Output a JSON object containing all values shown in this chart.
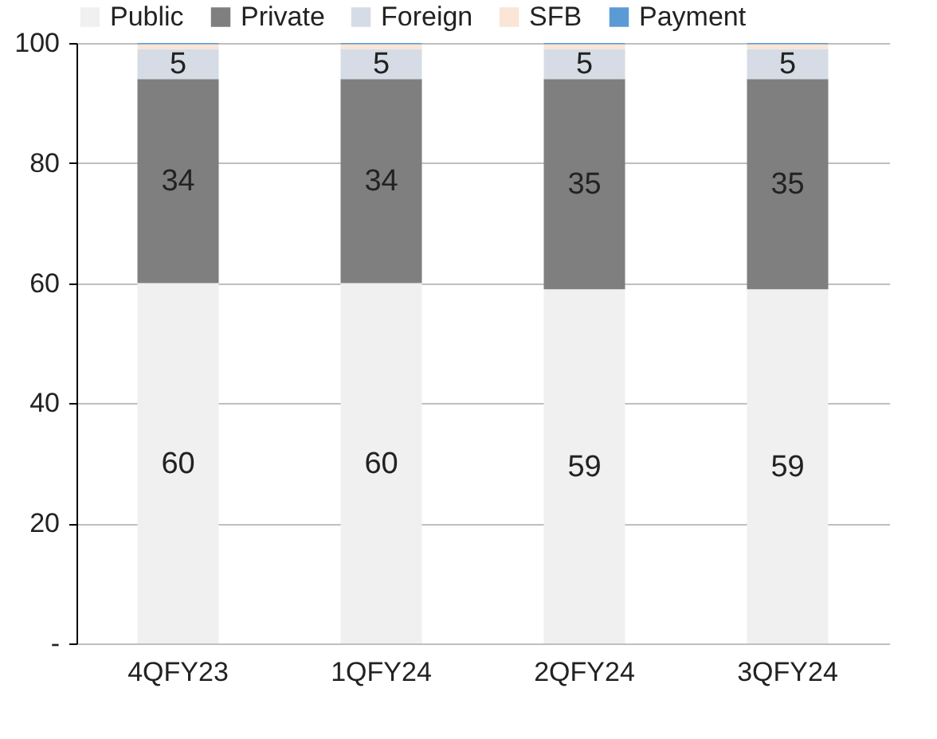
{
  "chart_data": {
    "type": "bar",
    "stacked": true,
    "categories": [
      "4QFY23",
      "1QFY24",
      "2QFY24",
      "3QFY24"
    ],
    "series": [
      {
        "name": "Public",
        "color": "#f0f0f0",
        "values": [
          60,
          60,
          59,
          59
        ],
        "value_labels": [
          "60",
          "60",
          "59",
          "59"
        ]
      },
      {
        "name": "Private",
        "color": "#7f7f7f",
        "values": [
          34,
          34,
          35,
          35
        ],
        "value_labels": [
          "34",
          "34",
          "35",
          "35"
        ]
      },
      {
        "name": "Foreign",
        "color": "#d6dce5",
        "values": [
          5,
          5,
          5,
          5
        ],
        "value_labels": [
          "5",
          "5",
          "5",
          "5"
        ]
      },
      {
        "name": "SFB",
        "color": "#fbe5d6",
        "values": [
          0.8,
          0.8,
          0.8,
          0.8
        ],
        "value_labels": [
          null,
          null,
          null,
          null
        ]
      },
      {
        "name": "Payment",
        "color": "#5b9bd5",
        "values": [
          0.2,
          0.2,
          0.2,
          0.2
        ],
        "value_labels": [
          null,
          null,
          null,
          null
        ]
      }
    ],
    "ylim": [
      0,
      100
    ],
    "yticks": [
      {
        "value": 0,
        "label": "-"
      },
      20,
      40,
      60,
      80,
      100
    ],
    "grid": "y",
    "legend": "top"
  }
}
